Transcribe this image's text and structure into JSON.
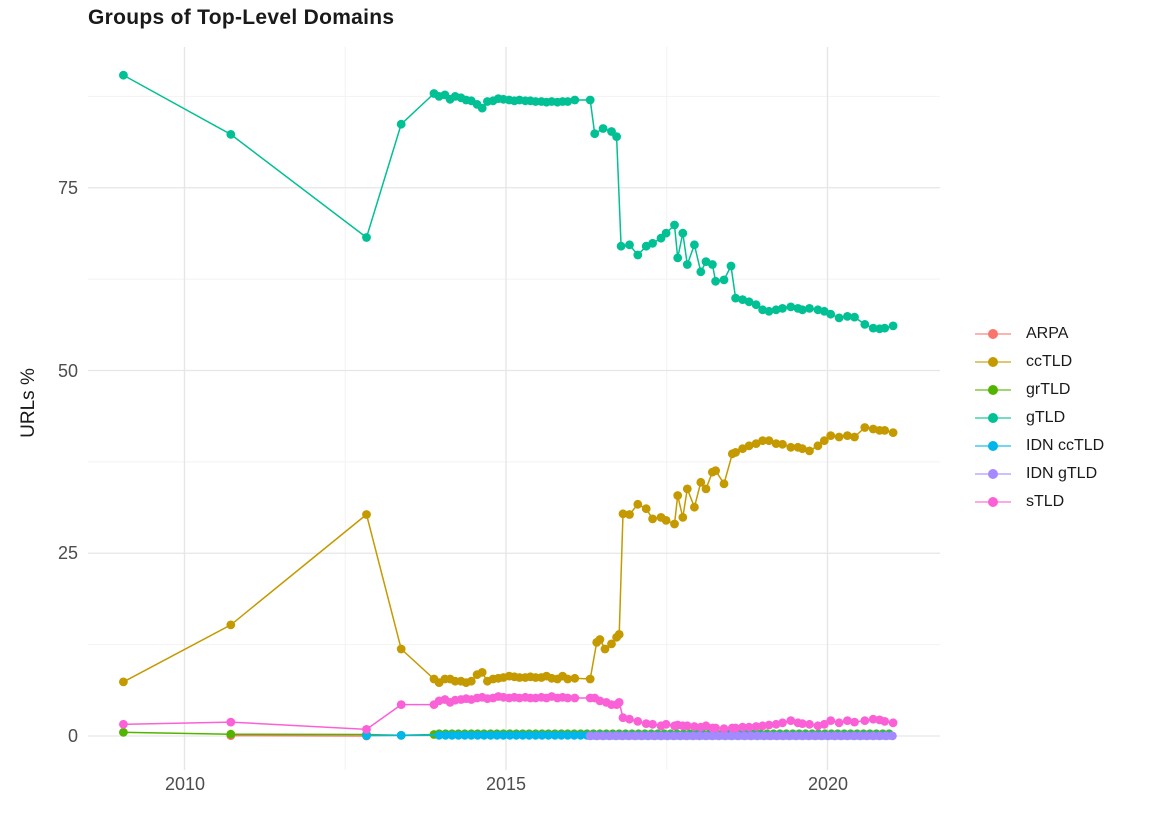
{
  "title": "Groups of Top-Level Domains",
  "axes": {
    "y_label": "URLs %",
    "y_tick_labels": [
      "0",
      "25",
      "50",
      "75"
    ],
    "x_tick_labels": [
      "2010",
      "2015",
      "2020"
    ]
  },
  "legend": {
    "position": "right",
    "items": [
      {
        "label": "ARPA",
        "color": "#F8766D"
      },
      {
        "label": "ccTLD",
        "color": "#C49A00"
      },
      {
        "label": "grTLD",
        "color": "#53B400"
      },
      {
        "label": "gTLD",
        "color": "#00C094"
      },
      {
        "label": "IDN ccTLD",
        "color": "#00B6EB"
      },
      {
        "label": "IDN gTLD",
        "color": "#A58AFF"
      },
      {
        "label": "sTLD",
        "color": "#FB61D7"
      }
    ]
  },
  "chart_data": {
    "type": "line",
    "markers": true,
    "title": "Groups of Top-Level Domains",
    "xlabel": "",
    "ylabel": "URLs %",
    "xlim": [
      2008.5,
      2021.8
    ],
    "ylim": [
      -4.7,
      94.3
    ],
    "grid": true,
    "legend_position": "right",
    "x_major_gridlines": [
      2010,
      2015,
      2020
    ],
    "x_minor_gridlines": [
      2012.5,
      2017.5
    ],
    "y_major_gridlines": [
      0,
      25,
      50,
      75
    ],
    "y_minor_gridlines": [
      12.5,
      37.5,
      62.5,
      87.5
    ],
    "series": [
      {
        "name": "ARPA",
        "color": "#F8766D",
        "points": [
          [
            2010.72,
            0.05
          ],
          [
            2012.83,
            0.0
          ]
        ]
      },
      {
        "name": "ccTLD",
        "color": "#C49A00",
        "points": [
          [
            2009.05,
            7.4
          ],
          [
            2010.72,
            15.2
          ],
          [
            2012.83,
            30.3
          ],
          [
            2013.37,
            11.9
          ],
          [
            2013.88,
            7.8
          ],
          [
            2013.96,
            7.3
          ],
          [
            2014.05,
            7.8
          ],
          [
            2014.13,
            7.8
          ],
          [
            2014.21,
            7.5
          ],
          [
            2014.3,
            7.5
          ],
          [
            2014.38,
            7.3
          ],
          [
            2014.46,
            7.5
          ],
          [
            2014.55,
            8.4
          ],
          [
            2014.63,
            8.7
          ],
          [
            2014.71,
            7.5
          ],
          [
            2014.8,
            7.8
          ],
          [
            2014.88,
            7.9
          ],
          [
            2014.96,
            8.0
          ],
          [
            2015.05,
            8.2
          ],
          [
            2015.13,
            8.1
          ],
          [
            2015.21,
            8.0
          ],
          [
            2015.3,
            8.0
          ],
          [
            2015.38,
            8.1
          ],
          [
            2015.46,
            8.0
          ],
          [
            2015.55,
            8.0
          ],
          [
            2015.63,
            8.2
          ],
          [
            2015.71,
            7.9
          ],
          [
            2015.8,
            7.8
          ],
          [
            2015.88,
            8.2
          ],
          [
            2015.96,
            7.8
          ],
          [
            2016.07,
            7.9
          ],
          [
            2016.31,
            7.8
          ],
          [
            2016.41,
            12.8
          ],
          [
            2016.46,
            13.2
          ],
          [
            2016.54,
            11.9
          ],
          [
            2016.64,
            12.6
          ],
          [
            2016.72,
            13.5
          ],
          [
            2016.76,
            13.9
          ],
          [
            2016.82,
            30.4
          ],
          [
            2016.92,
            30.3
          ],
          [
            2017.05,
            31.7
          ],
          [
            2017.18,
            31.1
          ],
          [
            2017.28,
            29.7
          ],
          [
            2017.41,
            29.9
          ],
          [
            2017.49,
            29.5
          ],
          [
            2017.62,
            29.0
          ],
          [
            2017.67,
            32.9
          ],
          [
            2017.75,
            29.9
          ],
          [
            2017.82,
            33.8
          ],
          [
            2017.93,
            31.3
          ],
          [
            2018.03,
            34.7
          ],
          [
            2018.11,
            33.8
          ],
          [
            2018.21,
            36.1
          ],
          [
            2018.26,
            36.3
          ],
          [
            2018.39,
            34.5
          ],
          [
            2018.52,
            38.6
          ],
          [
            2018.57,
            38.8
          ],
          [
            2018.68,
            39.3
          ],
          [
            2018.78,
            39.7
          ],
          [
            2018.89,
            40.0
          ],
          [
            2018.99,
            40.4
          ],
          [
            2019.09,
            40.4
          ],
          [
            2019.2,
            40.0
          ],
          [
            2019.3,
            39.9
          ],
          [
            2019.43,
            39.5
          ],
          [
            2019.54,
            39.5
          ],
          [
            2019.61,
            39.3
          ],
          [
            2019.72,
            39.0
          ],
          [
            2019.85,
            39.7
          ],
          [
            2019.95,
            40.4
          ],
          [
            2020.05,
            41.1
          ],
          [
            2020.18,
            40.9
          ],
          [
            2020.31,
            41.1
          ],
          [
            2020.42,
            40.9
          ],
          [
            2020.58,
            42.2
          ],
          [
            2020.71,
            42.0
          ],
          [
            2020.81,
            41.8
          ],
          [
            2020.89,
            41.8
          ],
          [
            2021.02,
            41.5
          ]
        ]
      },
      {
        "name": "grTLD",
        "color": "#53B400",
        "points": [
          [
            2009.05,
            0.5
          ],
          [
            2010.72,
            0.25
          ],
          [
            2012.83,
            0.2
          ],
          [
            2013.37,
            0.1
          ],
          [
            2013.88,
            0.2
          ]
        ],
        "flat": {
          "x_start": 2013.96,
          "x_end": 2021.02,
          "step": 0.1,
          "value": 0.3
        }
      },
      {
        "name": "gTLD",
        "color": "#00C094",
        "points": [
          [
            2009.05,
            90.4
          ],
          [
            2010.72,
            82.3
          ],
          [
            2012.83,
            68.2
          ],
          [
            2013.37,
            83.7
          ],
          [
            2013.88,
            87.9
          ],
          [
            2013.96,
            87.5
          ],
          [
            2014.05,
            87.7
          ],
          [
            2014.13,
            87.1
          ],
          [
            2014.21,
            87.5
          ],
          [
            2014.3,
            87.3
          ],
          [
            2014.38,
            87.0
          ],
          [
            2014.46,
            86.9
          ],
          [
            2014.55,
            86.4
          ],
          [
            2014.63,
            85.9
          ],
          [
            2014.71,
            86.8
          ],
          [
            2014.8,
            86.9
          ],
          [
            2014.88,
            87.2
          ],
          [
            2014.96,
            87.1
          ],
          [
            2015.05,
            87.0
          ],
          [
            2015.13,
            86.9
          ],
          [
            2015.21,
            87.0
          ],
          [
            2015.3,
            86.9
          ],
          [
            2015.38,
            86.9
          ],
          [
            2015.46,
            86.8
          ],
          [
            2015.55,
            86.8
          ],
          [
            2015.63,
            86.7
          ],
          [
            2015.71,
            86.8
          ],
          [
            2015.8,
            86.7
          ],
          [
            2015.88,
            86.8
          ],
          [
            2015.96,
            86.8
          ],
          [
            2016.07,
            87.0
          ],
          [
            2016.31,
            87.0
          ],
          [
            2016.38,
            82.4
          ],
          [
            2016.51,
            83.1
          ],
          [
            2016.64,
            82.7
          ],
          [
            2016.72,
            82.0
          ],
          [
            2016.79,
            67.0
          ],
          [
            2016.92,
            67.2
          ],
          [
            2017.05,
            65.8
          ],
          [
            2017.18,
            67.0
          ],
          [
            2017.28,
            67.4
          ],
          [
            2017.41,
            68.1
          ],
          [
            2017.49,
            68.8
          ],
          [
            2017.62,
            69.9
          ],
          [
            2017.67,
            65.4
          ],
          [
            2017.75,
            68.8
          ],
          [
            2017.82,
            64.5
          ],
          [
            2017.93,
            67.2
          ],
          [
            2018.03,
            63.5
          ],
          [
            2018.11,
            64.9
          ],
          [
            2018.21,
            64.5
          ],
          [
            2018.26,
            62.2
          ],
          [
            2018.39,
            62.4
          ],
          [
            2018.5,
            64.3
          ],
          [
            2018.57,
            59.9
          ],
          [
            2018.68,
            59.7
          ],
          [
            2018.78,
            59.4
          ],
          [
            2018.89,
            59.0
          ],
          [
            2018.99,
            58.3
          ],
          [
            2019.09,
            58.1
          ],
          [
            2019.2,
            58.3
          ],
          [
            2019.3,
            58.5
          ],
          [
            2019.43,
            58.7
          ],
          [
            2019.54,
            58.5
          ],
          [
            2019.61,
            58.3
          ],
          [
            2019.72,
            58.5
          ],
          [
            2019.85,
            58.3
          ],
          [
            2019.95,
            58.1
          ],
          [
            2020.05,
            57.7
          ],
          [
            2020.18,
            57.2
          ],
          [
            2020.31,
            57.4
          ],
          [
            2020.42,
            57.3
          ],
          [
            2020.58,
            56.3
          ],
          [
            2020.71,
            55.8
          ],
          [
            2020.81,
            55.7
          ],
          [
            2020.89,
            55.8
          ],
          [
            2021.02,
            56.1
          ]
        ]
      },
      {
        "name": "IDN ccTLD",
        "color": "#00B6EB",
        "points": [
          [
            2012.83,
            0.05
          ],
          [
            2013.37,
            0.08
          ]
        ],
        "flat": {
          "x_start": 2013.96,
          "x_end": 2021.02,
          "step": 0.1,
          "value": 0.1
        }
      },
      {
        "name": "IDN gTLD",
        "color": "#A58AFF",
        "flat": {
          "x_start": 2016.31,
          "x_end": 2021.02,
          "step": 0.1,
          "value": 0.02
        }
      },
      {
        "name": "sTLD",
        "color": "#FB61D7",
        "points": [
          [
            2009.05,
            1.6
          ],
          [
            2010.72,
            1.9
          ],
          [
            2012.83,
            0.9
          ],
          [
            2013.37,
            4.3
          ],
          [
            2013.88,
            4.3
          ],
          [
            2013.96,
            4.8
          ],
          [
            2014.05,
            5.0
          ],
          [
            2014.13,
            4.6
          ],
          [
            2014.21,
            4.9
          ],
          [
            2014.3,
            5.0
          ],
          [
            2014.38,
            5.1
          ],
          [
            2014.46,
            5.0
          ],
          [
            2014.55,
            5.2
          ],
          [
            2014.63,
            5.3
          ],
          [
            2014.71,
            5.1
          ],
          [
            2014.8,
            5.2
          ],
          [
            2014.88,
            5.4
          ],
          [
            2014.96,
            5.3
          ],
          [
            2015.05,
            5.2
          ],
          [
            2015.13,
            5.3
          ],
          [
            2015.21,
            5.2
          ],
          [
            2015.3,
            5.3
          ],
          [
            2015.38,
            5.2
          ],
          [
            2015.46,
            5.2
          ],
          [
            2015.55,
            5.3
          ],
          [
            2015.63,
            5.2
          ],
          [
            2015.71,
            5.4
          ],
          [
            2015.8,
            5.2
          ],
          [
            2015.88,
            5.3
          ],
          [
            2015.96,
            5.2
          ],
          [
            2016.07,
            5.2
          ],
          [
            2016.31,
            5.2
          ],
          [
            2016.38,
            5.2
          ],
          [
            2016.46,
            4.8
          ],
          [
            2016.56,
            4.6
          ],
          [
            2016.64,
            4.3
          ],
          [
            2016.72,
            4.3
          ],
          [
            2016.76,
            4.6
          ],
          [
            2016.82,
            2.5
          ],
          [
            2016.92,
            2.3
          ],
          [
            2017.05,
            2.0
          ],
          [
            2017.18,
            1.7
          ],
          [
            2017.28,
            1.6
          ],
          [
            2017.41,
            1.4
          ],
          [
            2017.49,
            1.6
          ],
          [
            2017.62,
            1.4
          ],
          [
            2017.67,
            1.5
          ],
          [
            2017.75,
            1.4
          ],
          [
            2017.82,
            1.4
          ],
          [
            2017.93,
            1.3
          ],
          [
            2018.03,
            1.2
          ],
          [
            2018.11,
            1.4
          ],
          [
            2018.21,
            1.1
          ],
          [
            2018.26,
            1.1
          ],
          [
            2018.39,
            1.0
          ],
          [
            2018.52,
            1.1
          ],
          [
            2018.57,
            1.1
          ],
          [
            2018.68,
            1.2
          ],
          [
            2018.78,
            1.2
          ],
          [
            2018.89,
            1.3
          ],
          [
            2018.99,
            1.4
          ],
          [
            2019.09,
            1.5
          ],
          [
            2019.2,
            1.6
          ],
          [
            2019.3,
            1.8
          ],
          [
            2019.43,
            2.1
          ],
          [
            2019.54,
            1.8
          ],
          [
            2019.61,
            1.7
          ],
          [
            2019.72,
            1.6
          ],
          [
            2019.85,
            1.4
          ],
          [
            2019.95,
            1.6
          ],
          [
            2020.05,
            2.1
          ],
          [
            2020.18,
            1.8
          ],
          [
            2020.31,
            2.1
          ],
          [
            2020.42,
            1.9
          ],
          [
            2020.58,
            2.1
          ],
          [
            2020.71,
            2.3
          ],
          [
            2020.81,
            2.2
          ],
          [
            2020.89,
            2.0
          ],
          [
            2021.02,
            1.8
          ]
        ]
      }
    ]
  }
}
